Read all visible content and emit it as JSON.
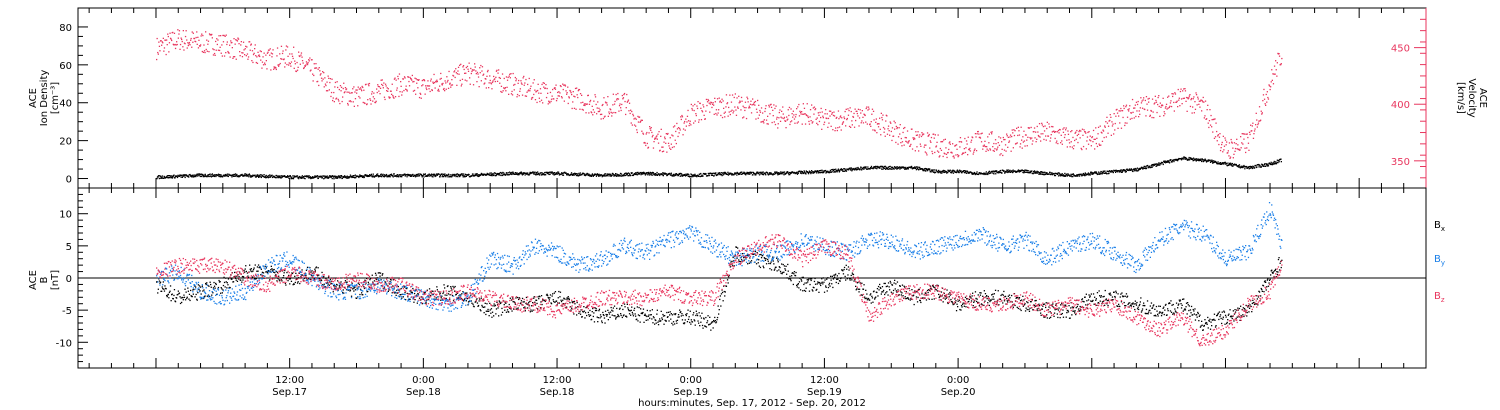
{
  "chart_data": [
    {
      "type": "scatter",
      "panel": "top",
      "ylabel_left": [
        "ACE",
        "Ion Density",
        "[cm⁻³]"
      ],
      "ylabel_right": [
        "ACE",
        "Velocity",
        "[km/s]"
      ],
      "left_ylim": [
        -5,
        90
      ],
      "left_yticks": [
        "0",
        "20",
        "40",
        "60",
        "80"
      ],
      "right_ylim": [
        326,
        485
      ],
      "right_yticks": [
        "350",
        "400",
        "450"
      ],
      "grid": false,
      "colors": {
        "density": "#000000",
        "velocity": "#e8365e"
      },
      "series": [
        {
          "name": "",
          "axis": "left",
          "color": "#000000",
          "x": [
            0,
            4,
            8,
            12,
            16,
            20,
            24,
            28,
            32,
            36,
            40,
            44,
            48,
            52,
            56,
            60,
            64,
            68,
            70,
            72,
            74,
            76,
            78,
            80,
            82,
            84,
            86,
            88,
            90,
            92,
            94,
            96,
            98,
            100,
            101
          ],
          "y": [
            1,
            2,
            2,
            1,
            1,
            2,
            2,
            2,
            3,
            3,
            2,
            3,
            2,
            3,
            3,
            4,
            6,
            6,
            4,
            4,
            3,
            4,
            4,
            3,
            2,
            3,
            4,
            5,
            8,
            11,
            10,
            8,
            6,
            8,
            10
          ]
        },
        {
          "name": "",
          "axis": "right",
          "color": "#e8365e",
          "x": [
            0,
            2,
            4,
            6,
            8,
            10,
            12,
            14,
            16,
            18,
            20,
            22,
            24,
            26,
            28,
            30,
            32,
            34,
            36,
            38,
            40,
            42,
            44,
            46,
            48,
            50,
            52,
            54,
            56,
            58,
            60,
            62,
            64,
            66,
            68,
            70,
            72,
            74,
            76,
            78,
            80,
            82,
            84,
            86,
            88,
            90,
            92,
            94,
            96,
            98,
            100,
            101
          ],
          "y": [
            450,
            458,
            455,
            453,
            447,
            440,
            443,
            430,
            412,
            407,
            412,
            418,
            415,
            422,
            428,
            423,
            418,
            412,
            410,
            405,
            397,
            403,
            372,
            367,
            392,
            398,
            400,
            395,
            388,
            393,
            386,
            388,
            389,
            378,
            368,
            364,
            362,
            368,
            365,
            373,
            375,
            370,
            368,
            385,
            398,
            399,
            406,
            398,
            360,
            367,
            420,
            445
          ]
        }
      ]
    },
    {
      "type": "scatter",
      "panel": "bottom",
      "ylabel": [
        "ACE",
        "B",
        "[nT]"
      ],
      "ylim": [
        -14,
        14
      ],
      "yticks": [
        "-10",
        "-5",
        "0",
        "5",
        "10"
      ],
      "zero_line": true,
      "grid": false,
      "colors": {
        "Bx": "#000000",
        "By": "#1a7fe8",
        "Bz": "#e8365e"
      },
      "legend_position": "right",
      "legend": [
        {
          "main": "B",
          "sub": "x",
          "color": "#000000"
        },
        {
          "main": "B",
          "sub": "y",
          "color": "#1a7fe8"
        },
        {
          "main": "B",
          "sub": "z",
          "color": "#e8365e"
        }
      ],
      "series": [
        {
          "name": "Bx",
          "color": "#000000",
          "x": [
            0,
            2,
            4,
            6,
            8,
            10,
            12,
            14,
            16,
            18,
            20,
            22,
            24,
            26,
            28,
            30,
            32,
            34,
            36,
            38,
            40,
            42,
            44,
            46,
            48,
            50,
            52,
            54,
            56,
            58,
            60,
            62,
            64,
            66,
            68,
            70,
            72,
            74,
            76,
            78,
            80,
            82,
            84,
            86,
            88,
            90,
            92,
            94,
            96,
            98,
            100,
            101
          ],
          "y": [
            -1,
            -3,
            -2,
            -1,
            1,
            1,
            0,
            1,
            -1,
            -2,
            0,
            -2,
            -3,
            -2,
            -3,
            -5,
            -4,
            -4,
            -3,
            -5,
            -6,
            -5,
            -6,
            -6,
            -6,
            -7,
            4,
            3,
            2,
            -1,
            -1,
            1,
            -3,
            -1,
            -3,
            -2,
            -4,
            -3,
            -3,
            -4,
            -5,
            -5,
            -3,
            -3,
            -4,
            -5,
            -4,
            -7,
            -6,
            -5,
            0,
            3
          ]
        },
        {
          "name": "By",
          "color": "#1a7fe8",
          "x": [
            0,
            2,
            4,
            6,
            8,
            10,
            12,
            14,
            16,
            18,
            20,
            22,
            24,
            26,
            28,
            30,
            32,
            34,
            36,
            38,
            40,
            42,
            44,
            46,
            48,
            50,
            52,
            54,
            56,
            58,
            60,
            62,
            64,
            66,
            68,
            70,
            72,
            74,
            76,
            78,
            80,
            82,
            84,
            86,
            88,
            90,
            92,
            94,
            96,
            98,
            100,
            101
          ],
          "y": [
            0,
            1,
            -2,
            -3,
            -2,
            2,
            3,
            0,
            -2,
            -2,
            -1,
            -2,
            -3,
            -4,
            -3,
            3,
            2,
            5,
            4,
            2,
            3,
            5,
            4,
            6,
            7,
            5,
            3,
            4,
            4,
            6,
            5,
            4,
            6,
            6,
            4,
            5,
            6,
            7,
            5,
            6,
            3,
            5,
            6,
            4,
            2,
            6,
            8,
            7,
            3,
            4,
            11,
            5
          ]
        },
        {
          "name": "Bz",
          "color": "#e8365e",
          "x": [
            0,
            2,
            4,
            6,
            8,
            10,
            12,
            14,
            16,
            18,
            20,
            22,
            24,
            26,
            28,
            30,
            32,
            34,
            36,
            38,
            40,
            42,
            44,
            46,
            48,
            50,
            52,
            54,
            56,
            58,
            60,
            62,
            64,
            66,
            68,
            70,
            72,
            74,
            76,
            78,
            80,
            82,
            84,
            86,
            88,
            90,
            92,
            94,
            96,
            98,
            100,
            101
          ],
          "y": [
            1,
            2,
            2,
            2,
            0,
            -1,
            1,
            0,
            -1,
            0,
            -1,
            -1,
            -3,
            -3,
            -2,
            -3,
            -4,
            -4,
            -5,
            -4,
            -3,
            -3,
            -3,
            -2,
            -3,
            -3,
            3,
            5,
            6,
            3,
            5,
            4,
            -6,
            -3,
            -2,
            -2,
            -3,
            -4,
            -4,
            -3,
            -5,
            -4,
            -5,
            -4,
            -6,
            -8,
            -6,
            -10,
            -8,
            -4,
            -2,
            2
          ]
        }
      ]
    }
  ],
  "x_axis": {
    "xlim": [
      -7,
      114
    ],
    "xlabel": "hours:minutes, Sep. 17, 2012 - Sep. 20, 2012",
    "ticks": [
      {
        "x": 12,
        "time": "12:00",
        "date": "Sep.17"
      },
      {
        "x": 24,
        "time": "0:00",
        "date": "Sep.18"
      },
      {
        "x": 36,
        "time": "12:00",
        "date": "Sep.18"
      },
      {
        "x": 48,
        "time": "0:00",
        "date": "Sep.19"
      },
      {
        "x": 60,
        "time": "12:00",
        "date": "Sep.19"
      },
      {
        "x": 72,
        "time": "0:00",
        "date": "Sep.20"
      }
    ]
  }
}
